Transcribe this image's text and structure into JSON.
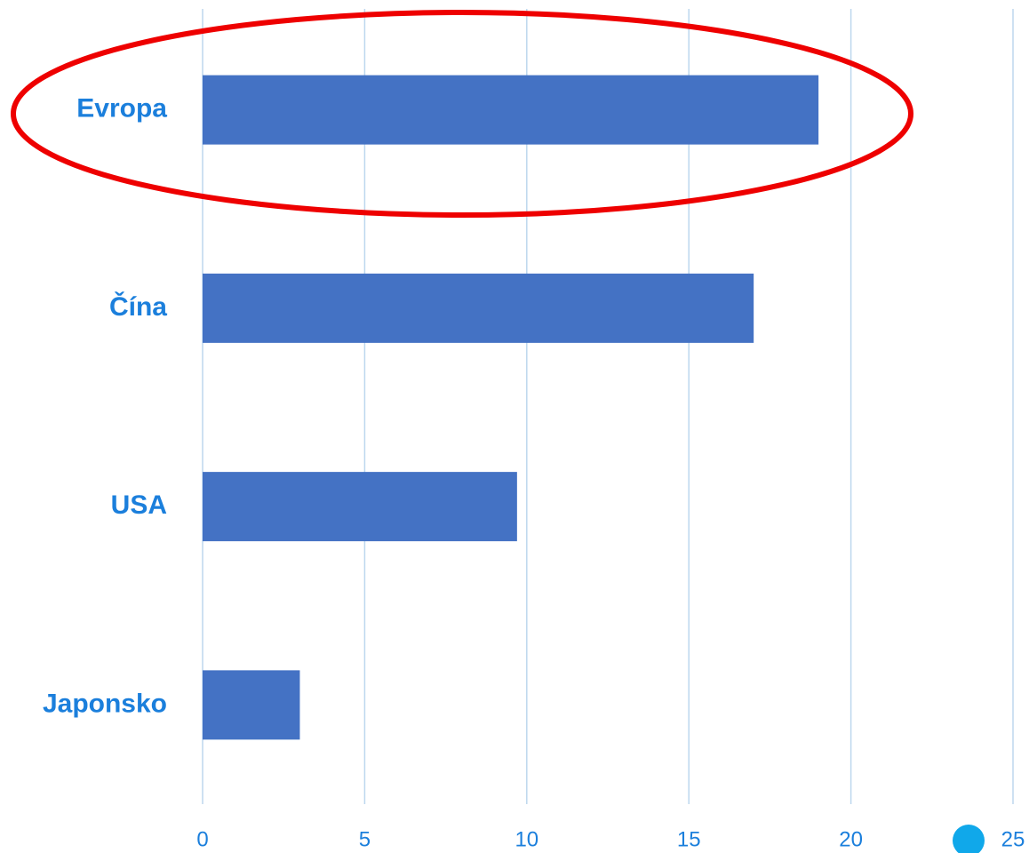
{
  "chart_data": {
    "type": "bar",
    "orientation": "horizontal",
    "categories": [
      "Evropa",
      "Čína",
      "USA",
      "Japonsko"
    ],
    "values": [
      19,
      17,
      9.7,
      3
    ],
    "color": "#4472c4",
    "xlim": [
      0,
      25
    ],
    "xticks": [
      0,
      5,
      10,
      15,
      20,
      25
    ],
    "grid": true
  }
}
